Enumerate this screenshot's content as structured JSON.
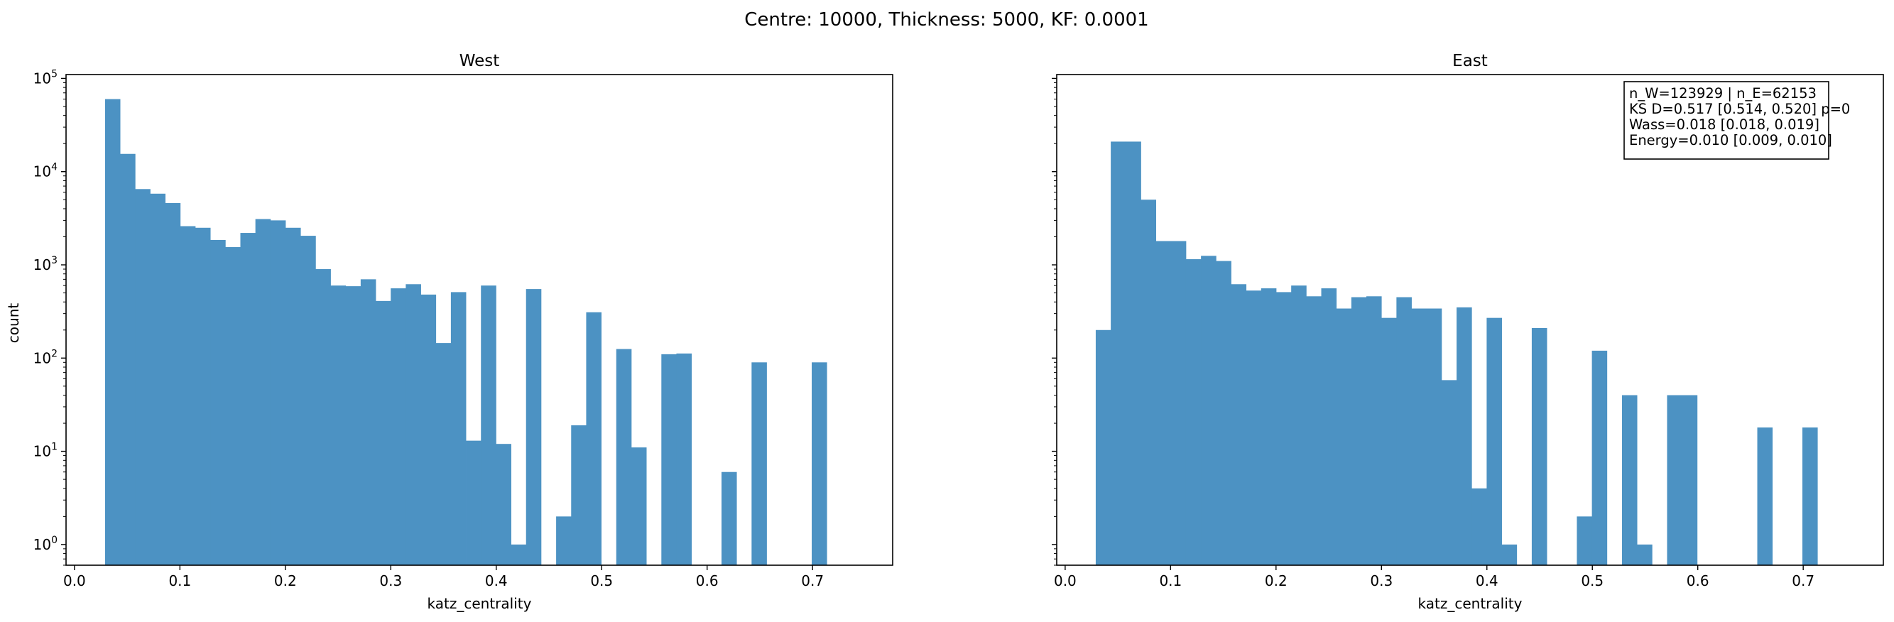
{
  "suptitle": "Centre: 10000, Thickness: 5000, KF: 0.0001",
  "colors": {
    "bar": "#4c92c3",
    "axis": "#000000",
    "background": "#ffffff"
  },
  "chart_data": [
    {
      "type": "bar",
      "title": "West",
      "xlabel": "katz_centrality",
      "ylabel": "count",
      "yscale": "log",
      "xlim": [
        -0.008,
        0.776
      ],
      "ylim": [
        0.6,
        110000
      ],
      "xticks": [
        0.0,
        0.1,
        0.2,
        0.3,
        0.4,
        0.5,
        0.6,
        0.7
      ],
      "xtick_labels": [
        "0.0",
        "0.1",
        "0.2",
        "0.3",
        "0.4",
        "0.5",
        "0.6",
        "0.7"
      ],
      "yticks": [
        1,
        10,
        100,
        1000,
        10000,
        100000
      ],
      "ytick_labels": [
        {
          "b": "10",
          "e": "0"
        },
        {
          "b": "10",
          "e": "1"
        },
        {
          "b": "10",
          "e": "2"
        },
        {
          "b": "10",
          "e": "3"
        },
        {
          "b": "10",
          "e": "4"
        },
        {
          "b": "10",
          "e": "5"
        }
      ],
      "bin_start": 0.029,
      "bin_width": 0.01426,
      "values": [
        60000,
        15500,
        6500,
        5800,
        4600,
        2600,
        2500,
        1850,
        1550,
        2200,
        3100,
        3000,
        2500,
        2050,
        900,
        600,
        590,
        700,
        410,
        560,
        620,
        480,
        145,
        510,
        13,
        600,
        12,
        1,
        550,
        0,
        2,
        19,
        310,
        0,
        125,
        11,
        0,
        110,
        112,
        0,
        0,
        6,
        0,
        90,
        0,
        0,
        0,
        90
      ]
    },
    {
      "type": "bar",
      "title": "East",
      "xlabel": "katz_centrality",
      "ylabel": "",
      "yscale": "log",
      "xlim": [
        -0.008,
        0.776
      ],
      "ylim": [
        0.6,
        110000
      ],
      "xticks": [
        0.0,
        0.1,
        0.2,
        0.3,
        0.4,
        0.5,
        0.6,
        0.7
      ],
      "xtick_labels": [
        "0.0",
        "0.1",
        "0.2",
        "0.3",
        "0.4",
        "0.5",
        "0.6",
        "0.7"
      ],
      "yticks": [
        1,
        10,
        100,
        1000,
        10000,
        100000
      ],
      "ytick_labels": [],
      "bin_start": 0.029,
      "bin_width": 0.01426,
      "values": [
        200,
        21000,
        21000,
        5000,
        1800,
        1800,
        1150,
        1250,
        1100,
        620,
        530,
        560,
        510,
        600,
        460,
        560,
        340,
        450,
        460,
        270,
        450,
        340,
        340,
        58,
        350,
        4,
        270,
        1,
        0,
        210,
        0,
        0,
        2,
        120,
        0,
        40,
        1,
        0,
        40,
        40,
        0,
        0,
        0,
        0,
        18,
        0,
        0,
        18
      ],
      "stats_box": [
        "n_W=123929 | n_E=62153",
        "KS D=0.517 [0.514, 0.520]  p=0",
        "Wass=0.018 [0.018, 0.019]",
        "Energy=0.010 [0.009, 0.010]"
      ]
    }
  ]
}
